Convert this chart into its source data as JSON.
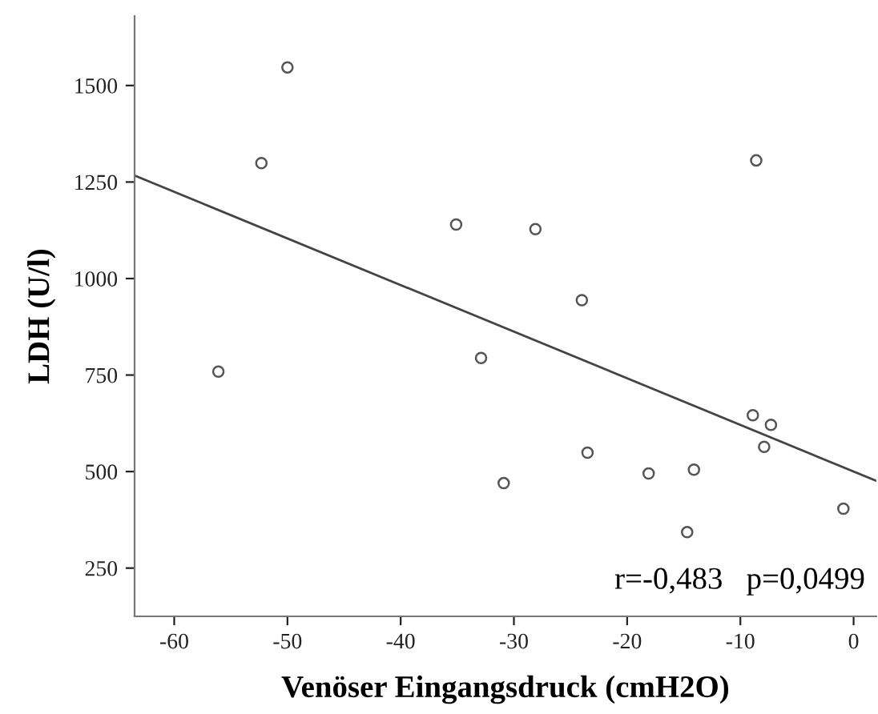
{
  "chart_data": {
    "type": "scatter",
    "xlabel": "Venöser Eingangsdruck (cmH2O)",
    "ylabel": "LDH (U/l)",
    "xlim": [
      -63.5,
      2
    ],
    "ylim": [
      125,
      1680
    ],
    "xticks": [
      -60,
      -50,
      -40,
      -30,
      -20,
      -10,
      0
    ],
    "yticks": [
      250,
      500,
      750,
      1000,
      1250,
      1500
    ],
    "grid": false,
    "legend": false,
    "annotations": [
      "r=-0,483   p=0,0499"
    ],
    "series": [
      {
        "marker": "circle",
        "color": "#555555",
        "x": [
          -50.0,
          -52.3,
          -35.1,
          -28.1,
          -24.0,
          -8.6,
          -32.9,
          -56.1,
          -23.5,
          -30.9,
          -18.1,
          -14.1,
          -14.7,
          -8.9,
          -7.3,
          -7.9,
          -0.9
        ],
        "values": [
          1547,
          1299,
          1140,
          1128,
          944,
          1306,
          794,
          759,
          549,
          470,
          495,
          505,
          343,
          646,
          621,
          564,
          404
        ]
      },
      {
        "type": "line",
        "color": "#444444",
        "x": [
          -63.5,
          2
        ],
        "values": [
          1267,
          476
        ]
      }
    ]
  }
}
